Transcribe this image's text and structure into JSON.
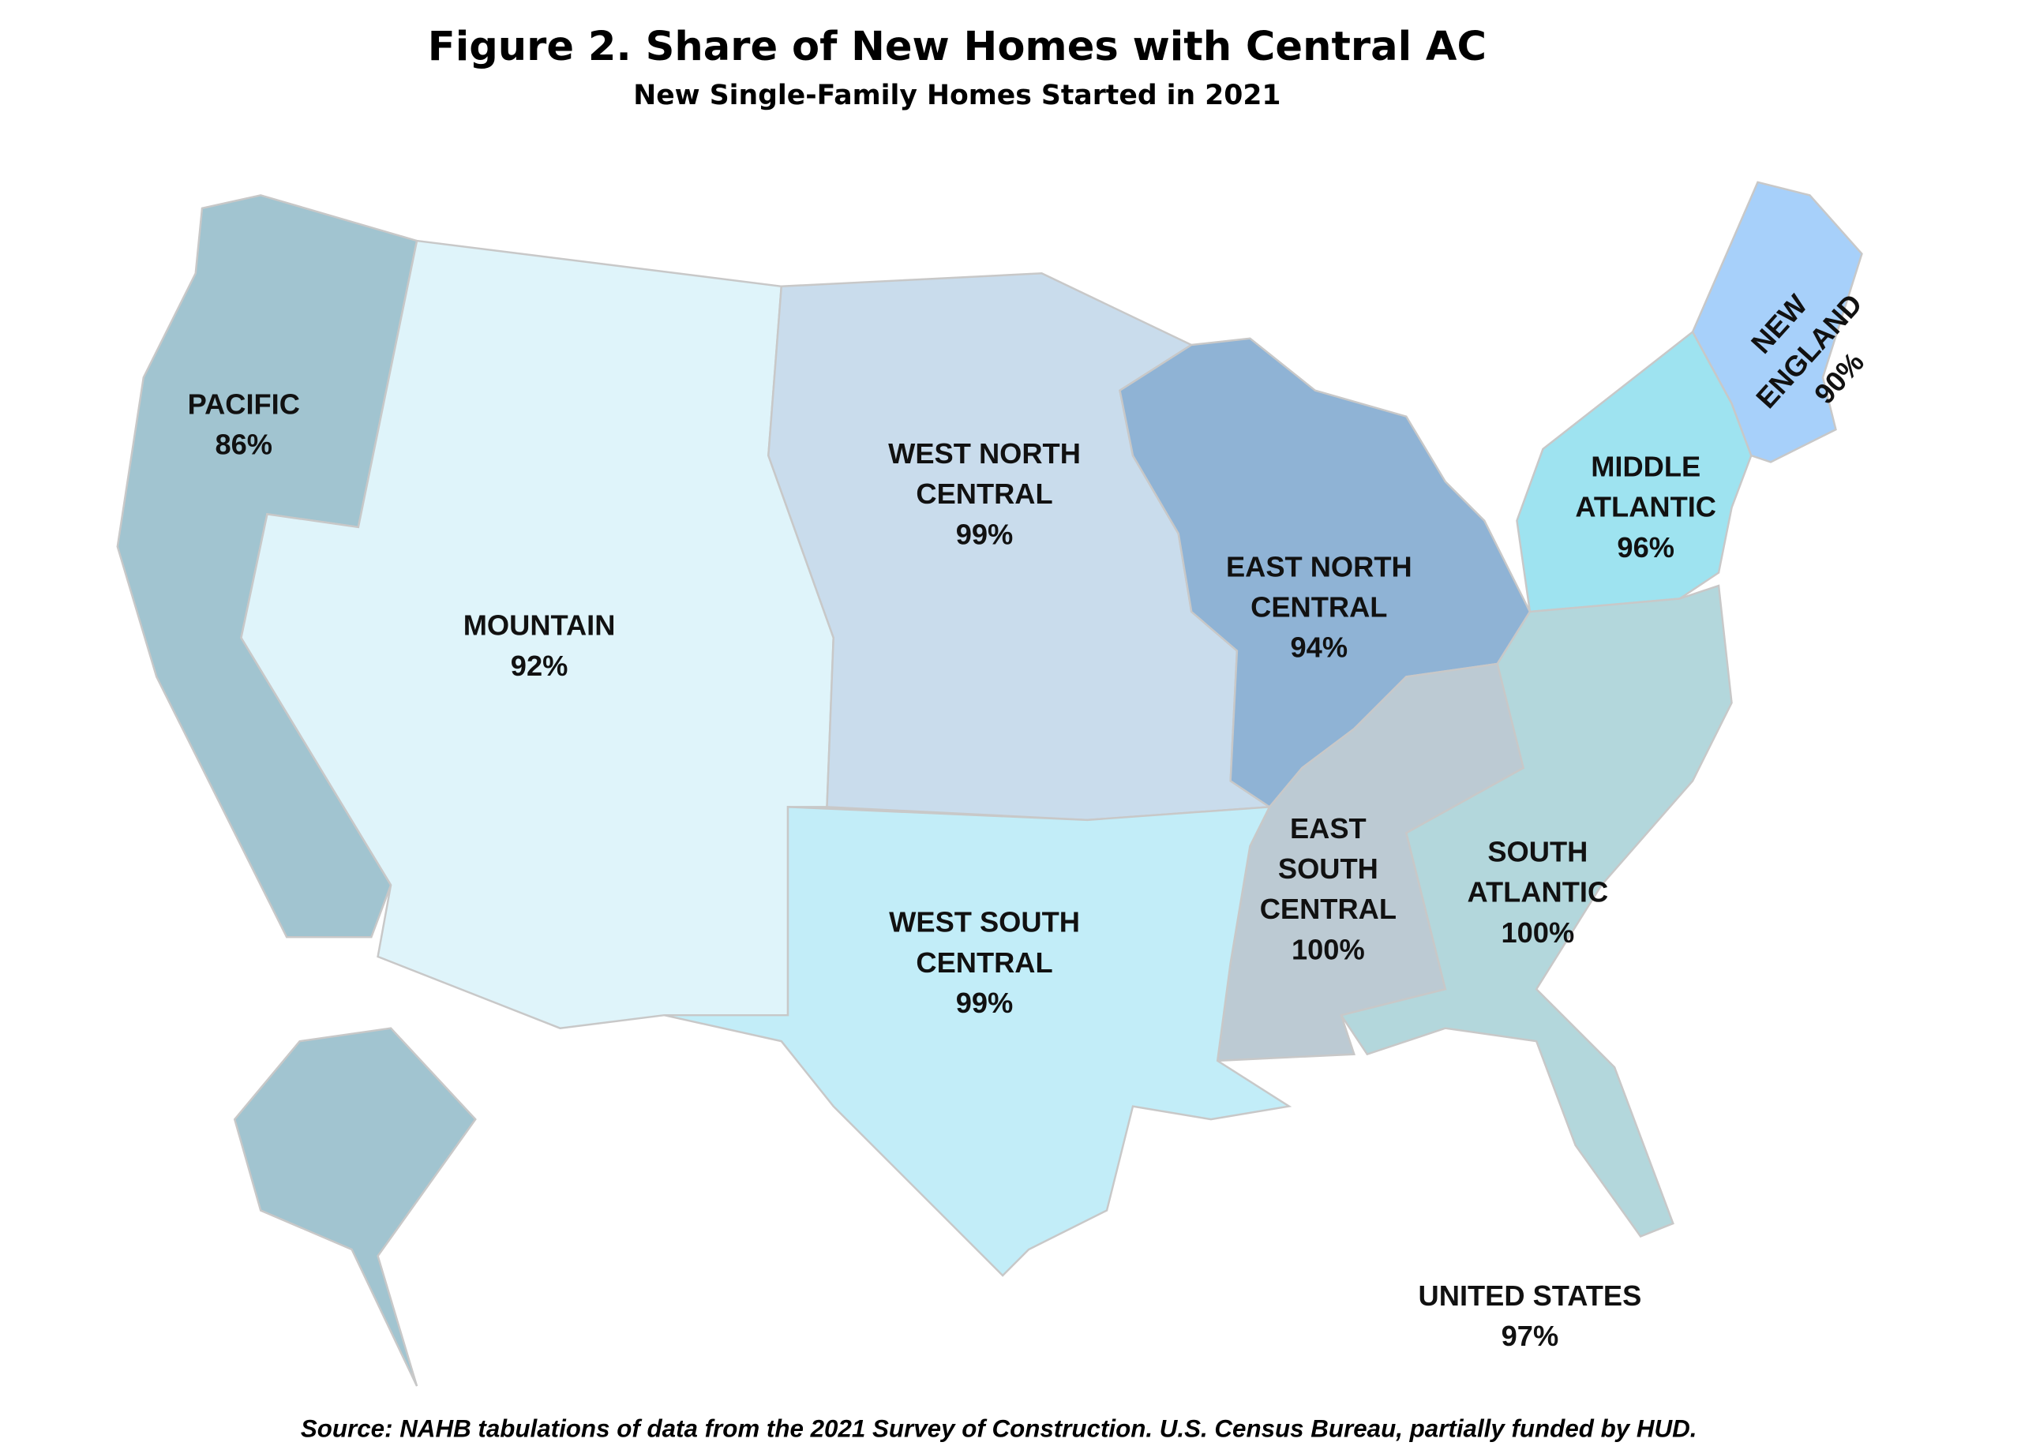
{
  "title": "Figure 2. Share of New Homes with Central AC",
  "subtitle": "New Single-Family Homes Started in 2021",
  "regions": [
    {
      "name_lines": [
        "PACIFIC"
      ],
      "value": "86%",
      "color": "#a1c4d0"
    },
    {
      "name_lines": [
        "MOUNTAIN"
      ],
      "value": "92%",
      "color": "#dff4fa"
    },
    {
      "name_lines": [
        "WEST NORTH",
        "CENTRAL"
      ],
      "value": "99%",
      "color": "#c9dcec"
    },
    {
      "name_lines": [
        "EAST NORTH",
        "CENTRAL"
      ],
      "value": "94%",
      "color": "#8fb3d5"
    },
    {
      "name_lines": [
        "MIDDLE",
        "ATLANTIC"
      ],
      "value": "96%",
      "color": "#9ee3f0"
    },
    {
      "name_lines": [
        "NEW",
        "ENGLAND"
      ],
      "value": "90%",
      "color": "#a7d0fa"
    },
    {
      "name_lines": [
        "SOUTH",
        "ATLANTIC"
      ],
      "value": "100%",
      "color": "#b3d7dc"
    },
    {
      "name_lines": [
        "EAST",
        "SOUTH",
        "CENTRAL"
      ],
      "value": "100%",
      "color": "#bccad3"
    },
    {
      "name_lines": [
        "WEST SOUTH",
        "CENTRAL"
      ],
      "value": "99%",
      "color": "#c2edf8"
    }
  ],
  "total": {
    "name": "UNITED STATES",
    "value": "97%"
  },
  "source": "Source: NAHB tabulations of data from the 2021 Survey of Construction. U.S. Census Bureau, partially funded by HUD."
}
